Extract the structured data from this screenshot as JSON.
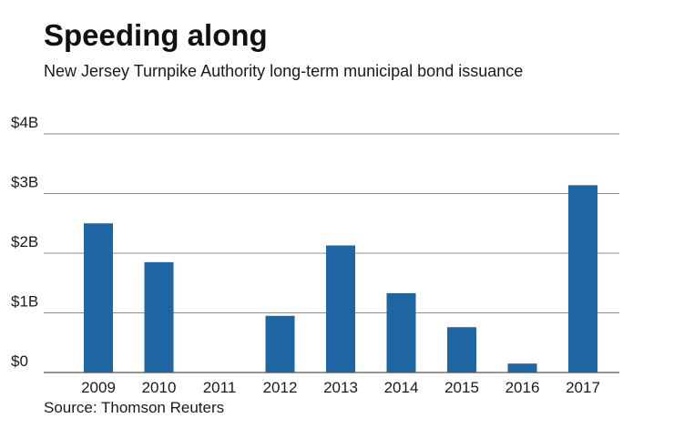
{
  "header": {
    "title": "Speeding along",
    "subtitle": "New Jersey Turnpike Authority long-term municipal bond issuance"
  },
  "footer": {
    "source": "Source: Thomson Reuters"
  },
  "colors": {
    "bar": "#1e66a3",
    "grid": "#8c8c8c",
    "axis": "#555555"
  },
  "chart_data": {
    "type": "bar",
    "title": "Speeding along",
    "subtitle": "New Jersey Turnpike Authority long-term municipal bond issuance",
    "xlabel": "",
    "ylabel": "",
    "categories": [
      "2009",
      "2010",
      "2011",
      "2012",
      "2013",
      "2014",
      "2015",
      "2016",
      "2017"
    ],
    "values": [
      2.5,
      1.85,
      0,
      0.95,
      2.13,
      1.33,
      0.76,
      0.15,
      3.14
    ],
    "units": "billions of dollars",
    "ylim": [
      0,
      4
    ],
    "yticks": [
      0,
      1,
      2,
      3,
      4
    ],
    "ytick_labels": [
      "$0",
      "$1B",
      "$2B",
      "$3B",
      "$4B"
    ],
    "grid": true,
    "legend": "none"
  }
}
